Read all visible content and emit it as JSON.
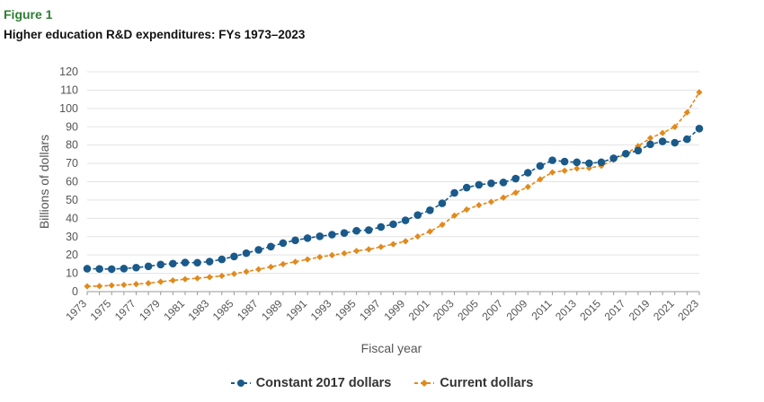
{
  "figure_label": "Figure 1",
  "title": "Higher education R&D expenditures: FYs 1973–2023",
  "chart_data": {
    "type": "line",
    "title": "Higher education R&D expenditures: FYs 1973–2023",
    "xlabel": "Fiscal year",
    "ylabel": "Billions of dollars",
    "ylim": [
      0,
      120
    ],
    "yticks": [
      0,
      10,
      20,
      30,
      40,
      50,
      60,
      70,
      80,
      90,
      100,
      110,
      120
    ],
    "xticks": [
      "1973",
      "1975",
      "1977",
      "1979",
      "1981",
      "1983",
      "1985",
      "1987",
      "1989",
      "1991",
      "1993",
      "1995",
      "1997",
      "1999",
      "2001",
      "2003",
      "2005",
      "2007",
      "2009",
      "2011",
      "2013",
      "2015",
      "2017",
      "2019",
      "2021",
      "2023"
    ],
    "x": [
      1973,
      1974,
      1975,
      1976,
      1977,
      1978,
      1979,
      1980,
      1981,
      1982,
      1983,
      1984,
      1985,
      1986,
      1987,
      1988,
      1989,
      1990,
      1991,
      1992,
      1993,
      1994,
      1995,
      1996,
      1997,
      1998,
      1999,
      2000,
      2001,
      2002,
      2003,
      2004,
      2005,
      2006,
      2007,
      2008,
      2009,
      2010,
      2011,
      2012,
      2013,
      2014,
      2015,
      2016,
      2017,
      2018,
      2019,
      2020,
      2021,
      2022,
      2023
    ],
    "grid": true,
    "legend_position": "bottom",
    "series": [
      {
        "name": "Constant 2017 dollars",
        "color": "#1a5a8a",
        "marker": "circle",
        "values": [
          12.5,
          12.4,
          12.3,
          12.6,
          13.1,
          13.8,
          14.8,
          15.3,
          15.9,
          15.8,
          16.4,
          17.6,
          19.2,
          21.0,
          22.8,
          24.6,
          26.5,
          28.0,
          29.2,
          30.2,
          31.1,
          32.0,
          33.2,
          33.6,
          35.3,
          36.8,
          38.9,
          41.8,
          44.4,
          48.2,
          53.9,
          56.8,
          58.3,
          59.1,
          59.6,
          61.7,
          64.9,
          68.6,
          71.7,
          71.0,
          70.6,
          70.1,
          70.6,
          72.8,
          75.3,
          77.0,
          80.4,
          82.0,
          81.3,
          83.2,
          89.0
        ]
      },
      {
        "name": "Current dollars",
        "color": "#e08a1e",
        "marker": "diamond",
        "values": [
          2.9,
          3.0,
          3.4,
          3.7,
          4.1,
          4.6,
          5.4,
          6.1,
          6.8,
          7.3,
          7.9,
          8.6,
          9.7,
          10.9,
          12.2,
          13.5,
          15.0,
          16.3,
          17.6,
          18.9,
          19.9,
          20.9,
          22.2,
          23.1,
          24.4,
          25.9,
          27.5,
          30.1,
          32.8,
          36.5,
          41.5,
          44.8,
          47.2,
          49.0,
          51.3,
          54.0,
          57.2,
          61.3,
          65.1,
          66.0,
          67.2,
          67.5,
          68.7,
          72.0,
          75.2,
          79.4,
          83.8,
          86.6,
          89.9,
          97.8,
          108.8
        ]
      }
    ]
  }
}
